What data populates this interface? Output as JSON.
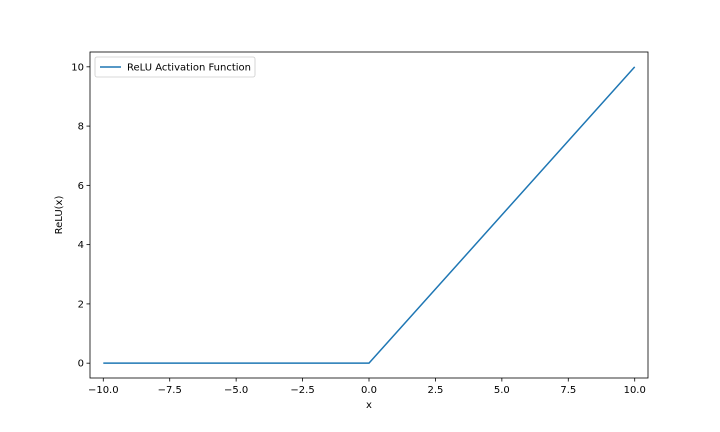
{
  "chart_data": {
    "type": "line",
    "title": "",
    "xlabel": "x",
    "ylabel": "ReLU(x)",
    "xlim": [
      -10.5,
      10.5
    ],
    "ylim": [
      -0.5,
      10.5
    ],
    "grid": false,
    "legend_position": "top-left",
    "x_ticks": [
      -10.0,
      -7.5,
      -5.0,
      -2.5,
      0.0,
      2.5,
      5.0,
      7.5,
      10.0
    ],
    "x_tick_labels": [
      "−10.0",
      "−7.5",
      "−5.0",
      "−2.5",
      "0.0",
      "2.5",
      "5.0",
      "7.5",
      "10.0"
    ],
    "y_ticks": [
      0,
      2,
      4,
      6,
      8,
      10
    ],
    "y_tick_labels": [
      "0",
      "2",
      "4",
      "6",
      "8",
      "10"
    ],
    "series": [
      {
        "name": "ReLU Activation Function",
        "color": "#1f77b4",
        "x": [
          -10,
          0,
          10
        ],
        "y": [
          0,
          0,
          10
        ]
      }
    ]
  }
}
